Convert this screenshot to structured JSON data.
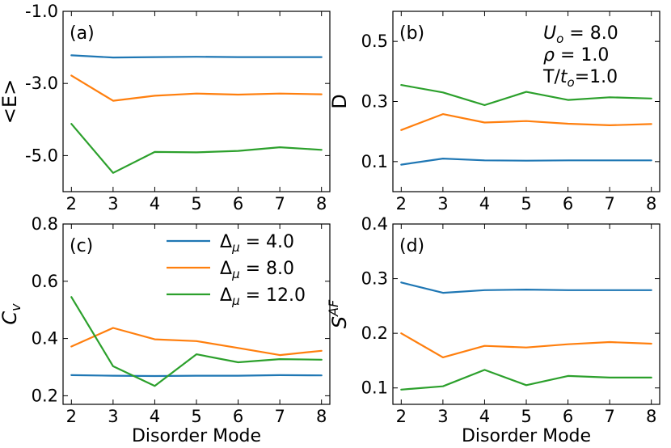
{
  "figure": {
    "series_colors": [
      "#1f77b4",
      "#ff7f0e",
      "#2ca02c"
    ],
    "legend": {
      "location": "panel-c-top-right",
      "entries": [
        {
          "prefix": "Δ",
          "sub": "μ",
          "rest": " = 4.0",
          "color": "#1f77b4"
        },
        {
          "prefix": "Δ",
          "sub": "μ",
          "rest": " = 8.0",
          "color": "#ff7f0e"
        },
        {
          "prefix": "Δ",
          "sub": "μ",
          "rest": " = 12.0",
          "color": "#2ca02c"
        }
      ]
    },
    "params_note": [
      {
        "main": "U",
        "sub": "o",
        "rest": " = 8.0"
      },
      {
        "main": "ρ",
        "sub": "",
        "rest": " = 1.0"
      },
      {
        "main": "T/t",
        "sub": "o",
        "rest": "=1.0"
      }
    ]
  },
  "chart_data": [
    {
      "type": "line",
      "panel_label": "(a)",
      "ylabel": "<E>",
      "xlabel": "",
      "x": [
        2,
        3,
        4,
        5,
        6,
        7,
        8
      ],
      "xlim": [
        1.8,
        8.2
      ],
      "ylim": [
        -6.0,
        -1.0
      ],
      "yticks": [
        -1.0,
        -3.0,
        -5.0
      ],
      "ytick_labels": [
        "-1.0",
        "-3.0",
        "-5.0"
      ],
      "xticks": [
        2,
        3,
        4,
        5,
        6,
        7,
        8
      ],
      "series": [
        {
          "values": [
            -2.22,
            -2.28,
            -2.27,
            -2.26,
            -2.27,
            -2.27,
            -2.27
          ]
        },
        {
          "values": [
            -2.78,
            -3.48,
            -3.34,
            -3.28,
            -3.31,
            -3.28,
            -3.3
          ]
        },
        {
          "values": [
            -4.12,
            -5.48,
            -4.9,
            -4.91,
            -4.87,
            -4.77,
            -4.84
          ]
        }
      ]
    },
    {
      "type": "line",
      "panel_label": "(b)",
      "ylabel": "D",
      "xlabel": "",
      "x": [
        2,
        3,
        4,
        5,
        6,
        7,
        8
      ],
      "xlim": [
        1.8,
        8.2
      ],
      "ylim": [
        0.0,
        0.6
      ],
      "yticks": [
        0.1,
        0.3,
        0.5
      ],
      "ytick_labels": [
        "0.1",
        "0.3",
        "0.5"
      ],
      "xticks": [
        2,
        3,
        4,
        5,
        6,
        7,
        8
      ],
      "series": [
        {
          "values": [
            0.09,
            0.11,
            0.104,
            0.103,
            0.104,
            0.104,
            0.104
          ]
        },
        {
          "values": [
            0.205,
            0.258,
            0.23,
            0.235,
            0.226,
            0.221,
            0.225
          ]
        },
        {
          "values": [
            0.355,
            0.33,
            0.288,
            0.332,
            0.305,
            0.314,
            0.31
          ]
        }
      ]
    },
    {
      "type": "line",
      "panel_label": "(c)",
      "ylabel": "C_v",
      "xlabel": "Disorder Mode",
      "x": [
        2,
        3,
        4,
        5,
        6,
        7,
        8
      ],
      "xlim": [
        1.8,
        8.2
      ],
      "ylim": [
        0.17,
        0.8
      ],
      "yticks": [
        0.2,
        0.4,
        0.6,
        0.8
      ],
      "ytick_labels": [
        "0.2",
        "0.4",
        "0.6",
        "0.8"
      ],
      "xticks": [
        2,
        3,
        4,
        5,
        6,
        7,
        8
      ],
      "series": [
        {
          "values": [
            0.272,
            0.27,
            0.269,
            0.27,
            0.27,
            0.272,
            0.271
          ]
        },
        {
          "values": [
            0.372,
            0.437,
            0.397,
            0.391,
            0.367,
            0.342,
            0.357
          ]
        },
        {
          "values": [
            0.545,
            0.303,
            0.234,
            0.345,
            0.317,
            0.328,
            0.326
          ]
        }
      ]
    },
    {
      "type": "line",
      "panel_label": "(d)",
      "ylabel": "S",
      "ylabel_sup": "AF",
      "xlabel": "Disorder Mode",
      "x": [
        2,
        3,
        4,
        5,
        6,
        7,
        8
      ],
      "xlim": [
        1.8,
        8.2
      ],
      "ylim": [
        0.07,
        0.4
      ],
      "yticks": [
        0.1,
        0.2,
        0.3,
        0.4
      ],
      "ytick_labels": [
        "0.1",
        "0.2",
        "0.3",
        "0.4"
      ],
      "xticks": [
        2,
        3,
        4,
        5,
        6,
        7,
        8
      ],
      "series": [
        {
          "values": [
            0.293,
            0.274,
            0.279,
            0.28,
            0.279,
            0.279,
            0.279
          ]
        },
        {
          "values": [
            0.2,
            0.156,
            0.177,
            0.174,
            0.18,
            0.184,
            0.181
          ]
        },
        {
          "values": [
            0.097,
            0.103,
            0.133,
            0.105,
            0.122,
            0.119,
            0.119
          ]
        }
      ]
    }
  ]
}
